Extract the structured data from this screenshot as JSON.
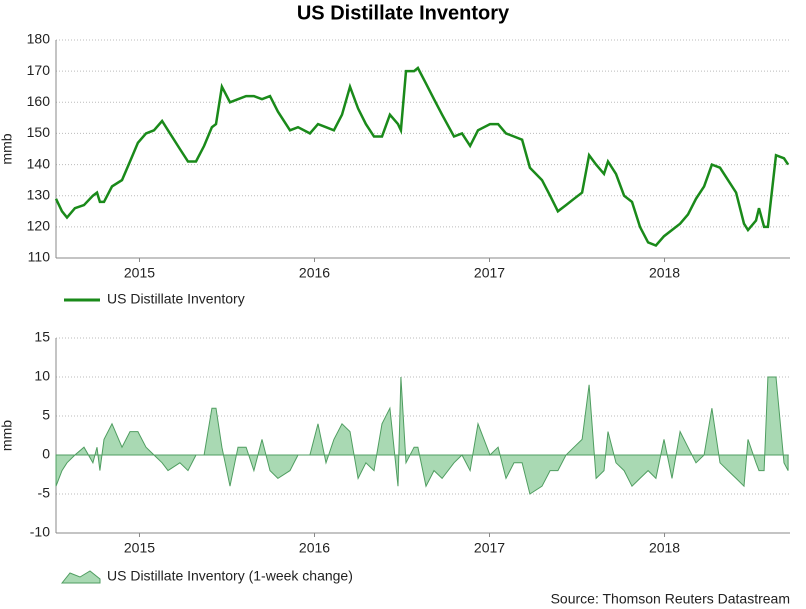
{
  "chart_data": [
    {
      "type": "line",
      "title": "US Distillate Inventory",
      "ylabel": "mmb",
      "x": [
        2015.023,
        2015.057,
        2015.086,
        2015.131,
        2015.183,
        2015.234,
        2015.257,
        2015.274,
        2015.297,
        2015.343,
        2015.4,
        2015.446,
        2015.491,
        2015.537,
        2015.583,
        2015.629,
        2015.663,
        2015.731,
        2015.777,
        2015.823,
        2015.869,
        2015.914,
        2015.937,
        2015.971,
        2016.017,
        2016.063,
        2016.109,
        2016.154,
        2016.2,
        2016.246,
        2016.291,
        2016.36,
        2016.406,
        2016.474,
        2016.52,
        2016.566,
        2016.611,
        2016.657,
        2016.703,
        2016.749,
        2016.794,
        2016.84,
        2016.886,
        2016.931,
        2016.977,
        2016.994,
        2017.023,
        2017.069,
        2017.091,
        2017.137,
        2017.183,
        2017.229,
        2017.297,
        2017.343,
        2017.389,
        2017.434,
        2017.503,
        2017.549,
        2017.594,
        2017.64,
        2017.686,
        2017.731,
        2017.8,
        2017.846,
        2017.891,
        2017.937,
        2017.983,
        2018.029,
        2018.069,
        2018.109,
        2018.154,
        2018.177,
        2018.223,
        2018.269,
        2018.314,
        2018.36,
        2018.406,
        2018.451,
        2018.497,
        2018.543,
        2018.589,
        2018.634,
        2018.68,
        2018.726,
        2018.771,
        2018.817,
        2018.863,
        2018.909,
        2018.954,
        2018.977,
        2019.023,
        2019.04,
        2019.069,
        2019.091,
        2019.137,
        2019.183,
        2019.206
      ],
      "series": [
        {
          "name": "US Distillate Inventory",
          "color": "#1a8a1a",
          "values": [
            129,
            125,
            123,
            126,
            127,
            130,
            131,
            128,
            128,
            133,
            135,
            141,
            147,
            150,
            151,
            154,
            151,
            145,
            141,
            141,
            146,
            152,
            153,
            165,
            160,
            161,
            162,
            162,
            161,
            162,
            157,
            151,
            152,
            150,
            153,
            152,
            151,
            156,
            165,
            158,
            153,
            149,
            149,
            156,
            153,
            151,
            170,
            170,
            171,
            166,
            161,
            156,
            149,
            150,
            146,
            151,
            153,
            153,
            150,
            149,
            148,
            139,
            135,
            130,
            125,
            127,
            129,
            131,
            143,
            140,
            137,
            141,
            137,
            130,
            128,
            120,
            115,
            114,
            117,
            119,
            121,
            124,
            129,
            133,
            140,
            139,
            135,
            131,
            121,
            119,
            122,
            126,
            120,
            120,
            143,
            142,
            140
          ]
        }
      ],
      "xlim": [
        2015.023,
        2019.217
      ],
      "ylim": [
        110,
        180
      ],
      "yticks": [
        110,
        120,
        130,
        140,
        150,
        160,
        170,
        180
      ],
      "xticks": [
        {
          "value": 2015.5,
          "label": "2015"
        },
        {
          "value": 2016.5,
          "label": "2016"
        },
        {
          "value": 2017.5,
          "label": "2017"
        },
        {
          "value": 2018.5,
          "label": "2018"
        }
      ],
      "grid": true
    },
    {
      "type": "area",
      "ylabel": "mmb",
      "x": [
        2015.023,
        2015.057,
        2015.086,
        2015.131,
        2015.183,
        2015.234,
        2015.257,
        2015.274,
        2015.297,
        2015.343,
        2015.4,
        2015.446,
        2015.491,
        2015.537,
        2015.583,
        2015.629,
        2015.663,
        2015.731,
        2015.777,
        2015.823,
        2015.869,
        2015.914,
        2015.937,
        2015.971,
        2016.017,
        2016.063,
        2016.109,
        2016.154,
        2016.2,
        2016.246,
        2016.291,
        2016.36,
        2016.406,
        2016.474,
        2016.52,
        2016.566,
        2016.611,
        2016.657,
        2016.703,
        2016.749,
        2016.794,
        2016.84,
        2016.886,
        2016.931,
        2016.977,
        2016.994,
        2017.023,
        2017.069,
        2017.091,
        2017.137,
        2017.183,
        2017.229,
        2017.297,
        2017.343,
        2017.389,
        2017.434,
        2017.503,
        2017.549,
        2017.594,
        2017.64,
        2017.686,
        2017.731,
        2017.8,
        2017.846,
        2017.891,
        2017.937,
        2017.983,
        2018.029,
        2018.069,
        2018.109,
        2018.154,
        2018.177,
        2018.223,
        2018.269,
        2018.314,
        2018.36,
        2018.406,
        2018.451,
        2018.497,
        2018.543,
        2018.589,
        2018.634,
        2018.68,
        2018.726,
        2018.771,
        2018.817,
        2018.863,
        2018.909,
        2018.954,
        2018.977,
        2019.023,
        2019.04,
        2019.069,
        2019.091,
        2019.137,
        2019.183,
        2019.206
      ],
      "series": [
        {
          "name": "US Distillate Inventory (1-week change)",
          "color": "#a9d9b3",
          "values": [
            -4,
            -2,
            -1,
            0,
            1,
            -1,
            1,
            -2,
            2,
            4,
            1,
            3,
            3,
            1,
            0,
            -1,
            -2,
            -1,
            -2,
            0,
            0,
            6,
            6,
            1,
            -4,
            1,
            1,
            -2,
            2,
            -2,
            -3,
            -2,
            0,
            0,
            4,
            -1,
            2,
            4,
            3,
            -3,
            -1,
            -2,
            4,
            6,
            -4,
            10,
            -1,
            1,
            1,
            -4,
            -2,
            -3,
            -1,
            0,
            -2,
            4,
            0,
            1,
            -3,
            -1,
            -1,
            -5,
            -4,
            -2,
            -2,
            0,
            1,
            2,
            9,
            -3,
            -2,
            3,
            -1,
            -2,
            -4,
            -3,
            -2,
            -3,
            2,
            -3,
            3,
            1,
            -1,
            0,
            6,
            -1,
            -2,
            -3,
            -4,
            2,
            -1,
            -2,
            -2,
            10,
            10,
            -1,
            -2
          ]
        }
      ],
      "xlim": [
        2015.023,
        2019.217
      ],
      "ylim": [
        -10,
        15
      ],
      "yticks": [
        -10,
        -5,
        0,
        5,
        10,
        15
      ],
      "xticks": [
        {
          "value": 2015.5,
          "label": "2015"
        },
        {
          "value": 2016.5,
          "label": "2016"
        },
        {
          "value": 2017.5,
          "label": "2017"
        },
        {
          "value": 2018.5,
          "label": "2018"
        }
      ],
      "grid": true
    }
  ],
  "source": "Source: Thomson Reuters Datastream"
}
